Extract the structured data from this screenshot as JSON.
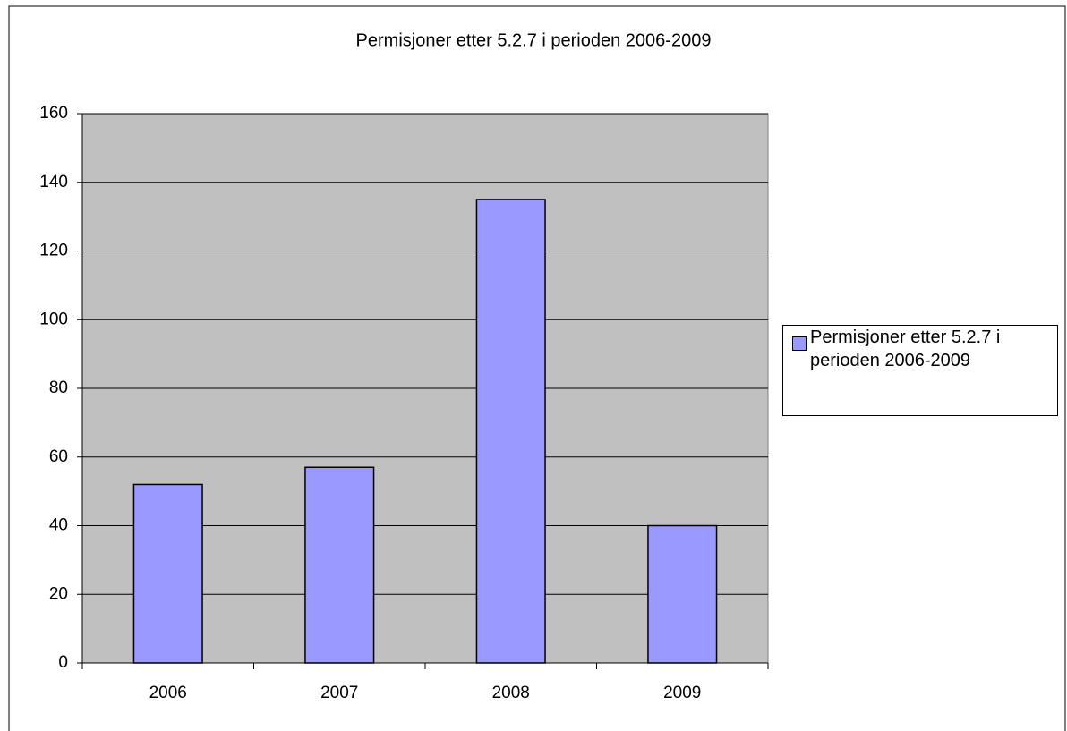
{
  "chart_data": {
    "type": "bar",
    "title": "Permisjoner etter 5.2.7 i perioden 2006-2009",
    "categories": [
      "2006",
      "2007",
      "2008",
      "2009"
    ],
    "series": [
      {
        "name": "Permisjoner etter 5.2.7 i perioden 2006-2009",
        "color": "#9999ff",
        "values": [
          52,
          57,
          135,
          40
        ]
      }
    ],
    "ylim": [
      0,
      160
    ],
    "yticks": [
      0,
      20,
      40,
      60,
      80,
      100,
      120,
      140,
      160
    ],
    "grid": true,
    "legend": "right"
  }
}
